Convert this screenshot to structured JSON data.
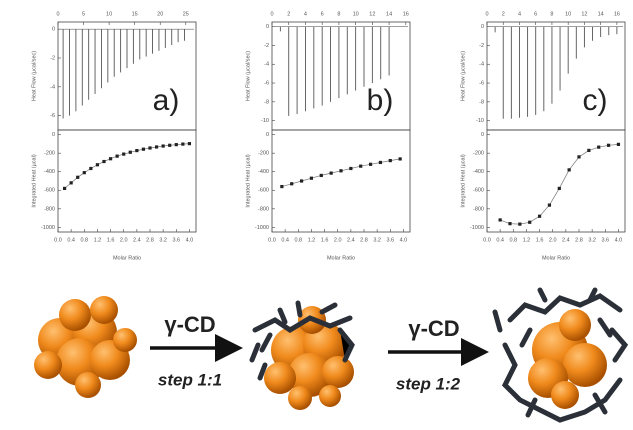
{
  "chart_data": [
    {
      "type": "itc",
      "label": "a)",
      "top": {
        "ylabel": "Heat Flow (µcal/sec)",
        "xlim": [
          0,
          27
        ],
        "xticks": [
          0,
          5,
          10,
          15,
          20,
          25
        ],
        "ylim": [
          -7,
          0.5
        ],
        "yticks": [
          0,
          -2,
          -4,
          -6
        ],
        "x": [
          1,
          2.25,
          3.5,
          4.75,
          6,
          7.25,
          8.5,
          9.75,
          11,
          12.25,
          13.5,
          14.75,
          16,
          17.25,
          18.5,
          19.75,
          21,
          22.25,
          23.5,
          24.75
        ],
        "values": [
          -6.2,
          -6,
          -5.7,
          -5.3,
          -4.9,
          -4.5,
          -4.1,
          -3.7,
          -3.3,
          -3,
          -2.7,
          -2.4,
          -2.1,
          -1.9,
          -1.7,
          -1.5,
          -1.3,
          -1.1,
          -0.9,
          -0.8
        ]
      },
      "bottom": {
        "xlabel": "Molar Ratio",
        "ylabel": "Integrated Heat (µcal)",
        "xlim": [
          0,
          4.2
        ],
        "xticks": [
          {
            "value": 0,
            "label": "0.0"
          },
          0.4,
          0.8,
          1.2,
          1.6,
          {
            "value": 2,
            "label": "2.0"
          },
          2.4,
          2.8,
          3.2,
          3.6,
          {
            "value": 4,
            "label": "4.0"
          }
        ],
        "ylim": [
          -1050,
          50
        ],
        "yticks": [
          0,
          -200,
          -400,
          -600,
          -800,
          -1000
        ],
        "x": [
          0.2,
          0.4,
          0.6,
          0.8,
          1,
          1.2,
          1.4,
          1.6,
          1.8,
          2,
          2.2,
          2.4,
          2.6,
          2.8,
          3,
          3.2,
          3.4,
          3.6,
          3.8,
          4
        ],
        "values": [
          -580,
          -520,
          -460,
          -410,
          -365,
          -325,
          -290,
          -260,
          -232,
          -210,
          -190,
          -172,
          -157,
          -144,
          -133,
          -123,
          -115,
          -108,
          -102,
          -97
        ]
      }
    },
    {
      "type": "itc",
      "label": "b)",
      "top": {
        "ylabel": "Heat Flow (µcal/sec)",
        "xlim": [
          0,
          16.5
        ],
        "xticks": [
          0,
          2,
          4,
          6,
          8,
          10,
          12,
          14,
          16
        ],
        "ylim": [
          -11,
          0.5
        ],
        "yticks": [
          0,
          -2,
          -4,
          -6,
          -8,
          -10
        ],
        "x": [
          1,
          2,
          3,
          4,
          5,
          6,
          7,
          8,
          9,
          10,
          11,
          12,
          13,
          14
        ],
        "values": [
          -0.5,
          -9.5,
          -9.3,
          -9,
          -8.7,
          -8.4,
          -8,
          -7.6,
          -7.2,
          -6.8,
          -6.4,
          -6,
          -5.6,
          -5.2
        ]
      },
      "bottom": {
        "xlabel": "Molar Ratio",
        "ylabel": "Integrated Heat (µcal)",
        "xlim": [
          0,
          4.2
        ],
        "xticks": [
          {
            "value": 0,
            "label": "0.0"
          },
          0.4,
          0.8,
          1.2,
          1.6,
          {
            "value": 2,
            "label": "2.0"
          },
          2.4,
          2.8,
          3.2,
          3.6,
          {
            "value": 4,
            "label": "4.0"
          }
        ],
        "ylim": [
          -1050,
          50
        ],
        "yticks": [
          0,
          -200,
          -400,
          -600,
          -800,
          -1000
        ],
        "x": [
          0.3,
          0.6,
          0.9,
          1.2,
          1.5,
          1.8,
          2.1,
          2.4,
          2.7,
          3,
          3.3,
          3.6,
          3.9
        ],
        "values": [
          -560,
          -530,
          -500,
          -470,
          -440,
          -415,
          -390,
          -365,
          -340,
          -320,
          -300,
          -280,
          -262
        ]
      }
    },
    {
      "type": "itc",
      "label": "c)",
      "top": {
        "ylabel": "Heat Flow (µcal/sec)",
        "xlim": [
          0,
          17
        ],
        "xticks": [
          0,
          2,
          4,
          6,
          8,
          10,
          12,
          14,
          16
        ],
        "ylim": [
          -11,
          0.5
        ],
        "yticks": [
          0,
          -2,
          -4,
          -6,
          -8,
          -10
        ],
        "x": [
          1,
          2,
          3,
          4,
          5,
          6,
          7,
          8,
          9,
          10,
          11,
          12,
          13,
          14,
          15,
          16
        ],
        "values": [
          -0.6,
          -9.8,
          -9.8,
          -9.7,
          -9.6,
          -9.4,
          -9,
          -8.2,
          -6.8,
          -5,
          -3.4,
          -2.2,
          -1.5,
          -1.1,
          -0.9,
          -0.8
        ]
      },
      "bottom": {
        "xlabel": "Molar Ratio",
        "ylabel": "Integrated Heat (µcal)",
        "xlim": [
          0,
          4.2
        ],
        "xticks": [
          {
            "value": 0,
            "label": "0.0"
          },
          0.4,
          0.8,
          1.2,
          1.6,
          {
            "value": 2,
            "label": "2.0"
          },
          2.4,
          2.8,
          3.2,
          3.6,
          {
            "value": 4,
            "label": "4.0"
          }
        ],
        "ylim": [
          -1050,
          50
        ],
        "yticks": [
          0,
          -200,
          -400,
          -600,
          -800,
          -1000
        ],
        "x": [
          0.4,
          0.7,
          1,
          1.3,
          1.6,
          1.9,
          2.2,
          2.5,
          2.8,
          3.1,
          3.4,
          3.7,
          4
        ],
        "values": [
          -920,
          -960,
          -965,
          -945,
          -880,
          -760,
          -580,
          -380,
          -240,
          -170,
          -135,
          -115,
          -105
        ]
      }
    }
  ],
  "scheme": {
    "steps": [
      {
        "reagent": "γ-CD",
        "label": "step 1:1"
      },
      {
        "reagent": "γ-CD",
        "label": "step 1:2"
      }
    ]
  }
}
